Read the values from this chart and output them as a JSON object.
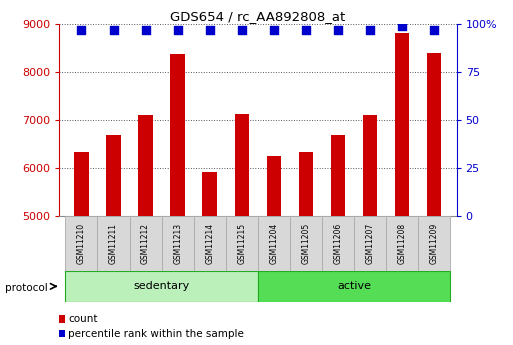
{
  "title": "GDS654 / rc_AA892808_at",
  "samples": [
    "GSM11210",
    "GSM11211",
    "GSM11212",
    "GSM11213",
    "GSM11214",
    "GSM11215",
    "GSM11204",
    "GSM11205",
    "GSM11206",
    "GSM11207",
    "GSM11208",
    "GSM11209"
  ],
  "counts": [
    6320,
    6680,
    7100,
    8380,
    5920,
    7120,
    6240,
    6330,
    6680,
    7100,
    8820,
    8390
  ],
  "percentile_ranks": [
    97,
    97,
    97,
    97,
    97,
    97,
    97,
    97,
    97,
    97,
    99,
    97
  ],
  "groups": [
    {
      "name": "sedentary",
      "start": 0,
      "end": 6,
      "color": "#bbf0bb"
    },
    {
      "name": "active",
      "start": 6,
      "end": 12,
      "color": "#55dd55"
    }
  ],
  "protocol_label": "protocol",
  "ylim_left": [
    5000,
    9000
  ],
  "ylim_right": [
    0,
    100
  ],
  "right_ticks": [
    0,
    25,
    50,
    75,
    100
  ],
  "right_tick_labels": [
    "0",
    "25",
    "50",
    "75",
    "100%"
  ],
  "left_ticks": [
    5000,
    6000,
    7000,
    8000,
    9000
  ],
  "bar_color": "#cc0000",
  "dot_color": "#0000cc",
  "background_color": "#ffffff",
  "axis_color_left": "#cc0000",
  "axis_color_right": "#0000cc",
  "grid_color": "#000000",
  "bar_width": 0.45,
  "dot_size": 30,
  "sample_box_color": "#d8d8d8",
  "sample_box_edge": "#aaaaaa"
}
